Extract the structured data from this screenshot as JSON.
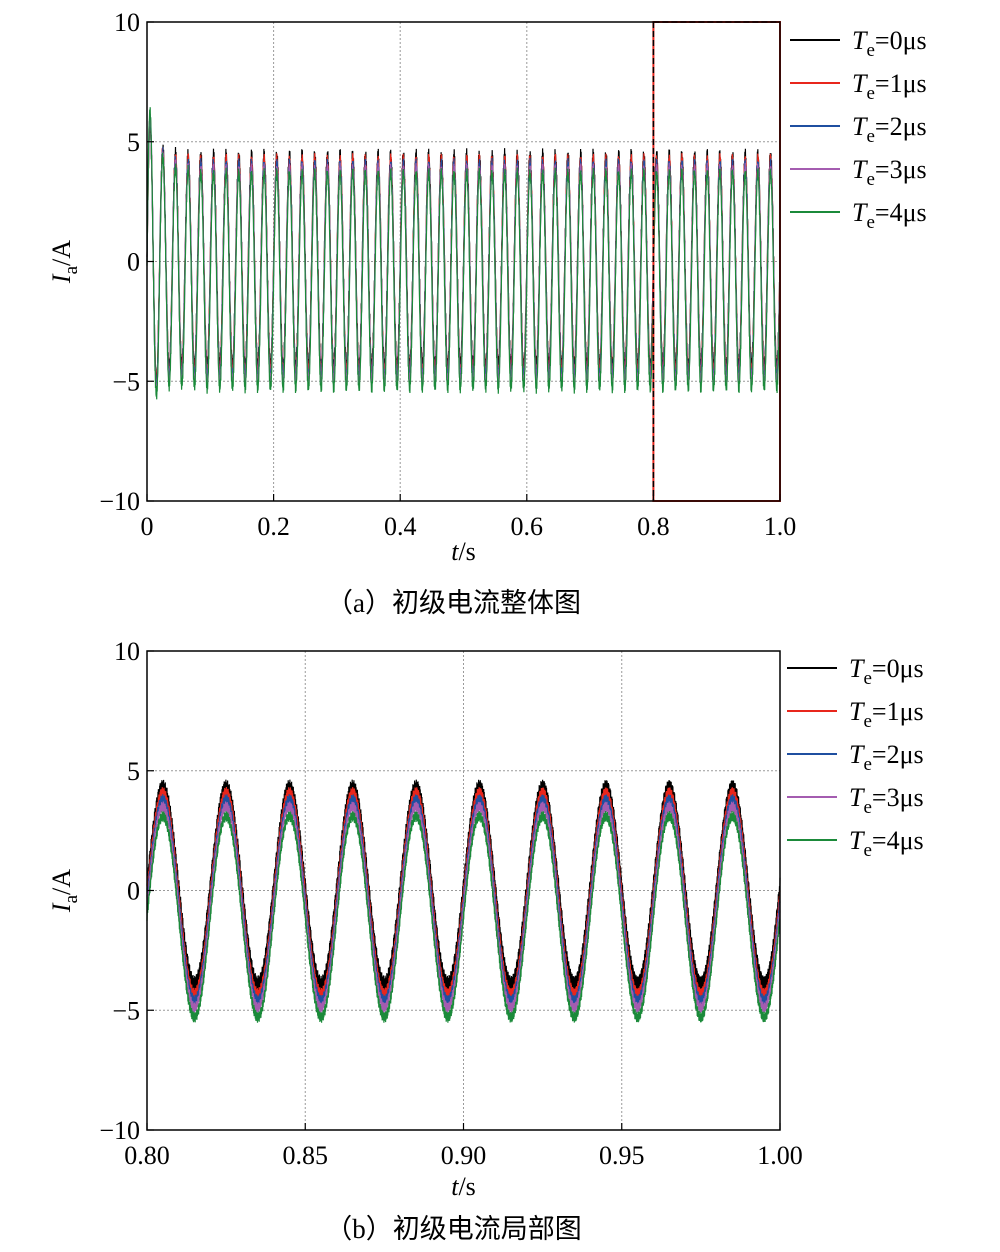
{
  "chart_data": [
    {
      "type": "line",
      "caption": "（a）初级电流整体图",
      "xlabel": {
        "var": "t",
        "unit": "/s"
      },
      "ylabel": {
        "var": "I",
        "sub": "a",
        "unit": "/A"
      },
      "xlim": [
        0,
        1.0
      ],
      "ylim": [
        -10,
        10
      ],
      "xticks": [
        0,
        0.2,
        0.4,
        0.6,
        0.8,
        1.0
      ],
      "xtick_labels": [
        "0",
        "0.2",
        "0.4",
        "0.6",
        "0.8",
        "1.0"
      ],
      "yticks": [
        -10,
        -5,
        0,
        5,
        10
      ],
      "ytick_labels": [
        "−10",
        "−5",
        "0",
        "5",
        "10"
      ],
      "grid": true,
      "legend_position": "right-outside-top",
      "zoom_box": {
        "x": [
          0.8,
          1.0
        ],
        "y": [
          -10,
          10
        ]
      },
      "signal": {
        "frequency_hz": 50,
        "startup_peak": 6.5,
        "steady_peak": [
          4.4,
          4.3,
          4.1,
          3.9,
          3.7
        ],
        "steady_trough": [
          -4.4,
          -4.6,
          -4.8,
          -5.0,
          -5.3
        ]
      },
      "series": [
        {
          "name": "T",
          "sub": "e",
          "value": "=0μs",
          "color": "#000000"
        },
        {
          "name": "T",
          "sub": "e",
          "value": "=1μs",
          "color": "#e8261c"
        },
        {
          "name": "T",
          "sub": "e",
          "value": "=2μs",
          "color": "#1f4fa0"
        },
        {
          "name": "T",
          "sub": "e",
          "value": "=3μs",
          "color": "#a45cb0"
        },
        {
          "name": "T",
          "sub": "e",
          "value": "=4μs",
          "color": "#1b8a3a"
        }
      ]
    },
    {
      "type": "line",
      "caption": "（b）初级电流局部图",
      "xlabel": {
        "var": "t",
        "unit": "/s"
      },
      "ylabel": {
        "var": "I",
        "sub": "a",
        "unit": "/A"
      },
      "xlim": [
        0.8,
        1.0
      ],
      "ylim": [
        -10,
        10
      ],
      "xticks": [
        0.8,
        0.85,
        0.9,
        0.95,
        1.0
      ],
      "xtick_labels": [
        "0.80",
        "0.85",
        "0.90",
        "0.95",
        "1.00"
      ],
      "yticks": [
        -10,
        -5,
        0,
        5,
        10
      ],
      "ytick_labels": [
        "−10",
        "−5",
        "0",
        "5",
        "10"
      ],
      "grid": true,
      "legend_position": "right-outside-top",
      "signal": {
        "frequency_hz": 50,
        "steady_peak": [
          4.3,
          4.1,
          3.8,
          3.5,
          3.1
        ],
        "steady_trough": [
          -3.9,
          -4.3,
          -4.6,
          -4.9,
          -5.3
        ]
      },
      "series": [
        {
          "name": "T",
          "sub": "e",
          "value": "=0μs",
          "color": "#000000"
        },
        {
          "name": "T",
          "sub": "e",
          "value": "=1μs",
          "color": "#e8261c"
        },
        {
          "name": "T",
          "sub": "e",
          "value": "=2μs",
          "color": "#1f4fa0"
        },
        {
          "name": "T",
          "sub": "e",
          "value": "=3μs",
          "color": "#a45cb0"
        },
        {
          "name": "T",
          "sub": "e",
          "value": "=4μs",
          "color": "#1b8a3a"
        }
      ]
    }
  ]
}
